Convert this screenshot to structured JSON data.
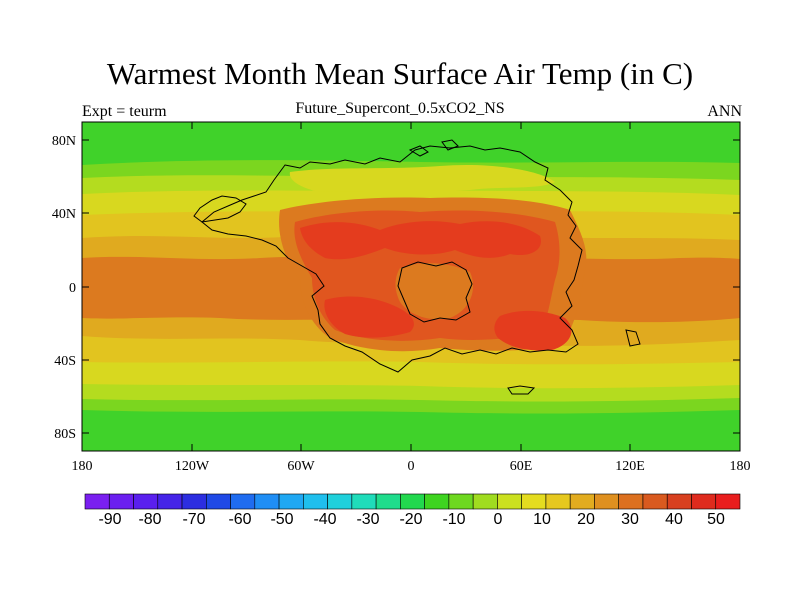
{
  "title": "Warmest Month Mean Surface Air Temp (in C)",
  "subtitle": "Future_Supercont_0.5xCO2_NS",
  "left_label": "Expt = teurm",
  "right_label": "ANN",
  "lat_ticks": [
    "80N",
    "40N",
    "0",
    "40S",
    "80S"
  ],
  "lon_ticks": [
    "180",
    "120W",
    "60W",
    "0",
    "60E",
    "120E",
    "180"
  ],
  "colorbar": {
    "labels": [
      "-90",
      "-80",
      "-70",
      "-60",
      "-50",
      "-40",
      "-30",
      "-20",
      "-10",
      "0",
      "10",
      "20",
      "30",
      "40",
      "50"
    ],
    "colors": [
      "#7a1ff0",
      "#6b1ff0",
      "#5a20ee",
      "#4524e8",
      "#2c2ee0",
      "#1f49e6",
      "#1f6cf0",
      "#1f8ef5",
      "#1fa8f3",
      "#1fbfed",
      "#1fd0db",
      "#1fdcba",
      "#1fdc8c",
      "#22d84e",
      "#3ed420",
      "#6ed820",
      "#a0dc1f",
      "#cbe01f",
      "#e4dc1f",
      "#e6c81f",
      "#e2ac1f",
      "#df901f",
      "#dc701f",
      "#d95a1f",
      "#d8401f",
      "#df2b1e",
      "#e91e1e"
    ]
  },
  "map_colors": {
    "polar": "#40d22a",
    "subpolar": "#7bd61f",
    "temperate": "#b4dc1f",
    "warm": "#d8d81f",
    "subtropical": "#e2c41f",
    "tropical": "#e0aa1f",
    "hot": "#dc7a1f",
    "hotter": "#e0561f",
    "hottest": "#e43c1e",
    "coastline": "#000000"
  }
}
